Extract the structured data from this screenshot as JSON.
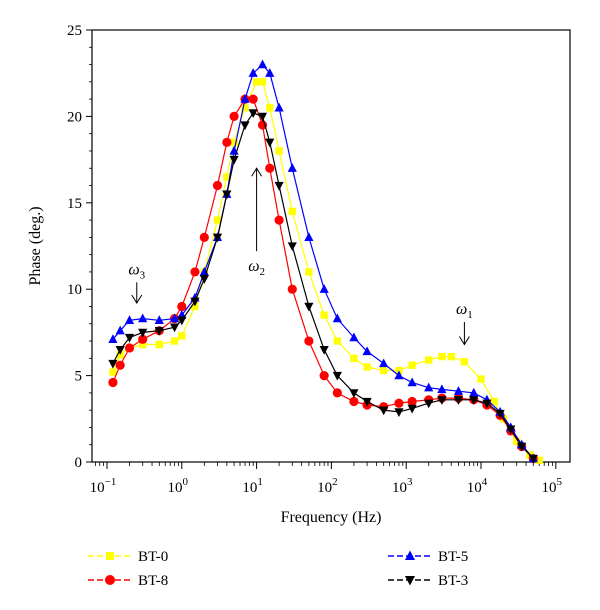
{
  "chart_data": {
    "type": "line",
    "xlabel": "Frequency (Hz)",
    "ylabel": "Phase (deg.)",
    "xscale": "log",
    "xlim": [
      0.05,
      100000
    ],
    "ylim": [
      0,
      25
    ],
    "x_ticks": [
      {
        "value": 0.1,
        "base": "10",
        "exp": "−1"
      },
      {
        "value": 1,
        "base": "10",
        "exp": "0"
      },
      {
        "value": 10,
        "base": "10",
        "exp": "1"
      },
      {
        "value": 100,
        "base": "10",
        "exp": "2"
      },
      {
        "value": 1000,
        "base": "10",
        "exp": "3"
      },
      {
        "value": 10000,
        "base": "10",
        "exp": "4"
      },
      {
        "value": 100000,
        "base": "10",
        "exp": "5"
      }
    ],
    "y_ticks": [
      "0",
      "5",
      "10",
      "15",
      "20",
      "25"
    ],
    "grid": false,
    "legend_position": "bottom",
    "series": [
      {
        "name": "BT-0",
        "color": "#ffff00",
        "marker": "square",
        "points": [
          [
            0.12,
            5.2
          ],
          [
            0.15,
            6.2
          ],
          [
            0.2,
            6.6
          ],
          [
            0.3,
            6.8
          ],
          [
            0.5,
            6.8
          ],
          [
            0.8,
            7.0
          ],
          [
            1.0,
            7.3
          ],
          [
            1.5,
            9.0
          ],
          [
            2.0,
            11.0
          ],
          [
            3.0,
            14.0
          ],
          [
            4.0,
            16.5
          ],
          [
            5.0,
            18.5
          ],
          [
            7.0,
            20.5
          ],
          [
            10.0,
            22.0
          ],
          [
            12.0,
            22.0
          ],
          [
            15.0,
            20.5
          ],
          [
            20.0,
            18.0
          ],
          [
            30.0,
            14.5
          ],
          [
            50.0,
            11.0
          ],
          [
            80.0,
            8.5
          ],
          [
            120.0,
            7.0
          ],
          [
            200.0,
            6.0
          ],
          [
            300.0,
            5.5
          ],
          [
            500.0,
            5.3
          ],
          [
            800.0,
            5.3
          ],
          [
            1200.0,
            5.6
          ],
          [
            2000.0,
            5.9
          ],
          [
            3000.0,
            6.1
          ],
          [
            4000.0,
            6.1
          ],
          [
            6000.0,
            5.8
          ],
          [
            10000.0,
            4.8
          ],
          [
            15000.0,
            3.5
          ],
          [
            20000.0,
            2.5
          ],
          [
            30000.0,
            1.2
          ],
          [
            45000.0,
            0.4
          ],
          [
            60000.0,
            0.1
          ]
        ]
      },
      {
        "name": "BT-8",
        "color": "#ff0000",
        "marker": "circle",
        "points": [
          [
            0.12,
            4.6
          ],
          [
            0.15,
            5.6
          ],
          [
            0.2,
            6.6
          ],
          [
            0.3,
            7.1
          ],
          [
            0.5,
            7.6
          ],
          [
            0.8,
            8.3
          ],
          [
            1.0,
            9.0
          ],
          [
            1.5,
            11.0
          ],
          [
            2.0,
            13.0
          ],
          [
            3.0,
            16.0
          ],
          [
            4.0,
            18.5
          ],
          [
            5.0,
            20.0
          ],
          [
            7.0,
            21.0
          ],
          [
            9.0,
            21.0
          ],
          [
            12.0,
            19.5
          ],
          [
            15.0,
            17.0
          ],
          [
            20.0,
            14.0
          ],
          [
            30.0,
            10.0
          ],
          [
            50.0,
            7.0
          ],
          [
            80.0,
            5.0
          ],
          [
            120.0,
            4.0
          ],
          [
            200.0,
            3.5
          ],
          [
            300.0,
            3.3
          ],
          [
            500.0,
            3.2
          ],
          [
            800.0,
            3.4
          ],
          [
            1200.0,
            3.5
          ],
          [
            2000.0,
            3.6
          ],
          [
            3000.0,
            3.7
          ],
          [
            5000.0,
            3.7
          ],
          [
            8000.0,
            3.6
          ],
          [
            12000.0,
            3.3
          ],
          [
            18000.0,
            2.7
          ],
          [
            25000.0,
            1.8
          ],
          [
            35000.0,
            0.9
          ],
          [
            50000.0,
            0.2
          ]
        ]
      },
      {
        "name": "BT-5",
        "color": "#0000ff",
        "marker": "triangle-up",
        "points": [
          [
            0.12,
            7.1
          ],
          [
            0.15,
            7.6
          ],
          [
            0.2,
            8.2
          ],
          [
            0.3,
            8.3
          ],
          [
            0.5,
            8.2
          ],
          [
            0.8,
            8.3
          ],
          [
            1.0,
            8.5
          ],
          [
            1.5,
            9.5
          ],
          [
            2.0,
            11.0
          ],
          [
            3.0,
            13.0
          ],
          [
            4.0,
            15.5
          ],
          [
            5.0,
            18.0
          ],
          [
            7.0,
            21.0
          ],
          [
            9.0,
            22.5
          ],
          [
            12.0,
            23.0
          ],
          [
            15.0,
            22.5
          ],
          [
            20.0,
            20.5
          ],
          [
            30.0,
            17.0
          ],
          [
            50.0,
            13.0
          ],
          [
            80.0,
            10.0
          ],
          [
            120.0,
            8.3
          ],
          [
            200.0,
            7.2
          ],
          [
            300.0,
            6.4
          ],
          [
            500.0,
            5.7
          ],
          [
            800.0,
            5.0
          ],
          [
            1200.0,
            4.6
          ],
          [
            2000.0,
            4.3
          ],
          [
            3000.0,
            4.2
          ],
          [
            5000.0,
            4.1
          ],
          [
            8000.0,
            4.0
          ],
          [
            12000.0,
            3.6
          ],
          [
            18000.0,
            2.9
          ],
          [
            25000.0,
            2.0
          ],
          [
            35000.0,
            1.0
          ],
          [
            50000.0,
            0.2
          ]
        ]
      },
      {
        "name": "BT-3",
        "color": "#000000",
        "marker": "triangle-down",
        "points": [
          [
            0.12,
            5.7
          ],
          [
            0.15,
            6.5
          ],
          [
            0.2,
            7.2
          ],
          [
            0.3,
            7.5
          ],
          [
            0.5,
            7.6
          ],
          [
            0.8,
            7.8
          ],
          [
            1.0,
            8.2
          ],
          [
            1.5,
            9.3
          ],
          [
            2.0,
            10.6
          ],
          [
            3.0,
            13.0
          ],
          [
            4.0,
            15.5
          ],
          [
            5.0,
            17.5
          ],
          [
            7.0,
            19.5
          ],
          [
            9.0,
            20.2
          ],
          [
            12.0,
            20.0
          ],
          [
            15.0,
            18.5
          ],
          [
            20.0,
            16.0
          ],
          [
            30.0,
            12.5
          ],
          [
            50.0,
            9.0
          ],
          [
            80.0,
            6.5
          ],
          [
            120.0,
            5.0
          ],
          [
            200.0,
            4.0
          ],
          [
            300.0,
            3.5
          ],
          [
            500.0,
            3.0
          ],
          [
            800.0,
            2.9
          ],
          [
            1200.0,
            3.1
          ],
          [
            2000.0,
            3.4
          ],
          [
            3000.0,
            3.6
          ],
          [
            5000.0,
            3.6
          ],
          [
            8000.0,
            3.6
          ],
          [
            12000.0,
            3.4
          ],
          [
            18000.0,
            2.8
          ],
          [
            25000.0,
            1.9
          ],
          [
            35000.0,
            0.9
          ],
          [
            50000.0,
            0.2
          ]
        ]
      }
    ],
    "annotations": [
      {
        "name": "omega-3",
        "symbol": "ω",
        "sub": "3",
        "x": 0.25,
        "y_from": 10.4,
        "y_to": 9.2,
        "direction": "down"
      },
      {
        "name": "omega-2",
        "symbol": "ω",
        "sub": "2",
        "x": 10,
        "y_from": 12.2,
        "y_to": 17.0,
        "direction": "up"
      },
      {
        "name": "omega-1",
        "symbol": "ω",
        "sub": "1",
        "x": 6000,
        "y_from": 8.1,
        "y_to": 6.8,
        "direction": "down"
      }
    ],
    "legend": [
      {
        "label": "BT-0",
        "series": 0
      },
      {
        "label": "BT-8",
        "series": 1
      },
      {
        "label": "BT-5",
        "series": 2
      },
      {
        "label": "BT-3",
        "series": 3
      }
    ]
  }
}
